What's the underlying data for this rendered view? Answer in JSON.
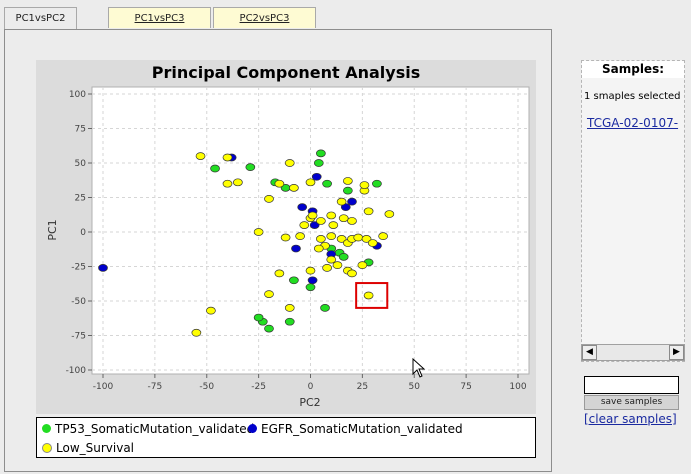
{
  "tabs": [
    {
      "label": "PC1vsPC2",
      "active": true
    },
    {
      "label": "PC1vsPC3",
      "active": false
    },
    {
      "label": "PC2vsPC3",
      "active": false
    }
  ],
  "legend": {
    "items": [
      {
        "label": "TP53_SomaticMutation_validated",
        "color": "#22dd22"
      },
      {
        "label": "EGFR_SomaticMutation_validated",
        "color": "#0000cc"
      },
      {
        "label": "Low_Survival",
        "color": "#ffff00"
      }
    ]
  },
  "samples_panel": {
    "title": "Samples:",
    "count_text": "1 smaples selected",
    "selected_link": "TCGA-02-0107-",
    "save_label": "save samples",
    "clear_label": "[clear samples]",
    "input_value": ""
  },
  "chart_data": {
    "type": "scatter",
    "title": "Principal Component Analysis",
    "xlabel": "PC2",
    "ylabel": "PC1",
    "xlim": [
      -100,
      100
    ],
    "ylim": [
      -100,
      100
    ],
    "xticks": [
      -100,
      -75,
      -50,
      -25,
      0,
      25,
      50,
      75,
      100
    ],
    "yticks": [
      -100,
      -75,
      -50,
      -25,
      0,
      25,
      50,
      75,
      100
    ],
    "grid": true,
    "legend_position": "bottom",
    "selection_box": {
      "x": [
        22,
        37
      ],
      "y": [
        -55,
        -37
      ]
    },
    "series": [
      {
        "name": "TP53_SomaticMutation_validated",
        "color": "#22dd22",
        "points": [
          [
            -46,
            46
          ],
          [
            -29,
            47
          ],
          [
            -17,
            36
          ],
          [
            -12,
            32
          ],
          [
            4,
            50
          ],
          [
            5,
            57
          ],
          [
            8,
            35
          ],
          [
            18,
            30
          ],
          [
            32,
            35
          ],
          [
            -23,
            -65
          ],
          [
            -25,
            -62
          ],
          [
            -20,
            -70
          ],
          [
            -10,
            -65
          ],
          [
            -8,
            -35
          ],
          [
            0,
            -40
          ],
          [
            7,
            -55
          ],
          [
            14,
            -15
          ],
          [
            28,
            -22
          ],
          [
            16,
            -18
          ],
          [
            10,
            -12
          ]
        ]
      },
      {
        "name": "EGFR_SomaticMutation_validated",
        "color": "#0000cc",
        "points": [
          [
            -100,
            -26
          ],
          [
            -38,
            54
          ],
          [
            3,
            40
          ],
          [
            -4,
            18
          ],
          [
            1,
            15
          ],
          [
            2,
            5
          ],
          [
            17,
            18
          ],
          [
            -7,
            -12
          ],
          [
            10,
            -16
          ],
          [
            1,
            -35
          ],
          [
            32,
            -10
          ],
          [
            20,
            22
          ]
        ]
      },
      {
        "name": "Low_Survival",
        "color": "#ffff00",
        "points": [
          [
            -53,
            55
          ],
          [
            -40,
            54
          ],
          [
            -40,
            35
          ],
          [
            -35,
            36
          ],
          [
            -10,
            50
          ],
          [
            -15,
            35
          ],
          [
            -8,
            32
          ],
          [
            -20,
            24
          ],
          [
            0,
            36
          ],
          [
            18,
            37
          ],
          [
            15,
            22
          ],
          [
            26,
            30
          ],
          [
            26,
            34
          ],
          [
            -25,
            0
          ],
          [
            -12,
            -4
          ],
          [
            -5,
            -3
          ],
          [
            -3,
            5
          ],
          [
            0,
            10
          ],
          [
            1,
            12
          ],
          [
            5,
            8
          ],
          [
            10,
            12
          ],
          [
            5,
            -5
          ],
          [
            10,
            -3
          ],
          [
            15,
            -5
          ],
          [
            18,
            -8
          ],
          [
            20,
            -5
          ],
          [
            23,
            -4
          ],
          [
            27,
            -5
          ],
          [
            30,
            -8
          ],
          [
            35,
            -3
          ],
          [
            38,
            13
          ],
          [
            28,
            15
          ],
          [
            20,
            8
          ],
          [
            16,
            10
          ],
          [
            11,
            5
          ],
          [
            7,
            -10
          ],
          [
            4,
            -12
          ],
          [
            10,
            -20
          ],
          [
            13,
            -24
          ],
          [
            18,
            -28
          ],
          [
            20,
            -30
          ],
          [
            8,
            -26
          ],
          [
            0,
            -28
          ],
          [
            -15,
            -30
          ],
          [
            -20,
            -45
          ],
          [
            -10,
            -55
          ],
          [
            -48,
            -57
          ],
          [
            -55,
            -73
          ],
          [
            28,
            -46
          ],
          [
            25,
            -24
          ]
        ]
      }
    ]
  }
}
